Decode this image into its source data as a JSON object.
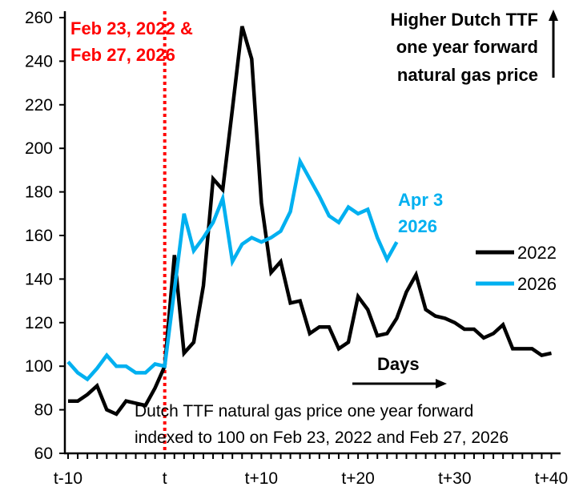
{
  "chart_data": {
    "type": "line",
    "title": "",
    "xlabel": "Days",
    "ylabel": "",
    "ylim": [
      60,
      260
    ],
    "yticks": [
      60,
      80,
      100,
      120,
      140,
      160,
      180,
      200,
      220,
      240,
      260
    ],
    "xlim": [
      -10,
      40
    ],
    "xticks": [
      {
        "value": -10,
        "label": "t-10"
      },
      {
        "value": 0,
        "label": "t"
      },
      {
        "value": 10,
        "label": "t+10"
      },
      {
        "value": 20,
        "label": "t+20"
      },
      {
        "value": 30,
        "label": "t+30"
      },
      {
        "value": 40,
        "label": "t+40"
      }
    ],
    "legend_position": "right",
    "series": [
      {
        "name": "2022",
        "color": "#000000",
        "x_start": -10,
        "values": [
          84,
          84,
          87,
          91,
          80,
          78,
          84,
          83,
          82,
          90,
          100,
          151,
          106,
          111,
          137,
          186,
          181,
          218,
          256,
          241,
          175,
          143,
          148,
          129,
          130,
          115,
          118,
          118,
          108,
          111,
          132,
          126,
          114,
          115,
          122,
          134,
          142,
          126,
          123,
          122,
          120,
          117,
          117,
          113,
          115,
          119,
          108,
          108,
          108,
          105,
          106
        ]
      },
      {
        "name": "2026",
        "color": "#00B0F0",
        "x_start": -10,
        "values": [
          102,
          97,
          94,
          99,
          105,
          100,
          100,
          97,
          97,
          101,
          100,
          135,
          170,
          153,
          159,
          166,
          177,
          148,
          156,
          159,
          157,
          159,
          162,
          171,
          194,
          186,
          178,
          169,
          166,
          173,
          170,
          172,
          159,
          149,
          157
        ]
      }
    ],
    "annotations": {
      "event_line": {
        "x": 0,
        "color": "#FF0000",
        "label_line1": "Feb 23, 2022 &",
        "label_line2": "Feb 27, 2026"
      },
      "higher_price": {
        "line1": "Higher Dutch TTF",
        "line2": "one year forward",
        "line3": "natural gas price"
      },
      "end_label": {
        "line1": "Apr 3",
        "line2": "2026"
      },
      "days_label": "Days",
      "caption_line1": "Dutch TTF natural gas price one year forward",
      "caption_line2": "indexed to 100 on Feb 23, 2022 and Feb 27, 2026"
    }
  }
}
